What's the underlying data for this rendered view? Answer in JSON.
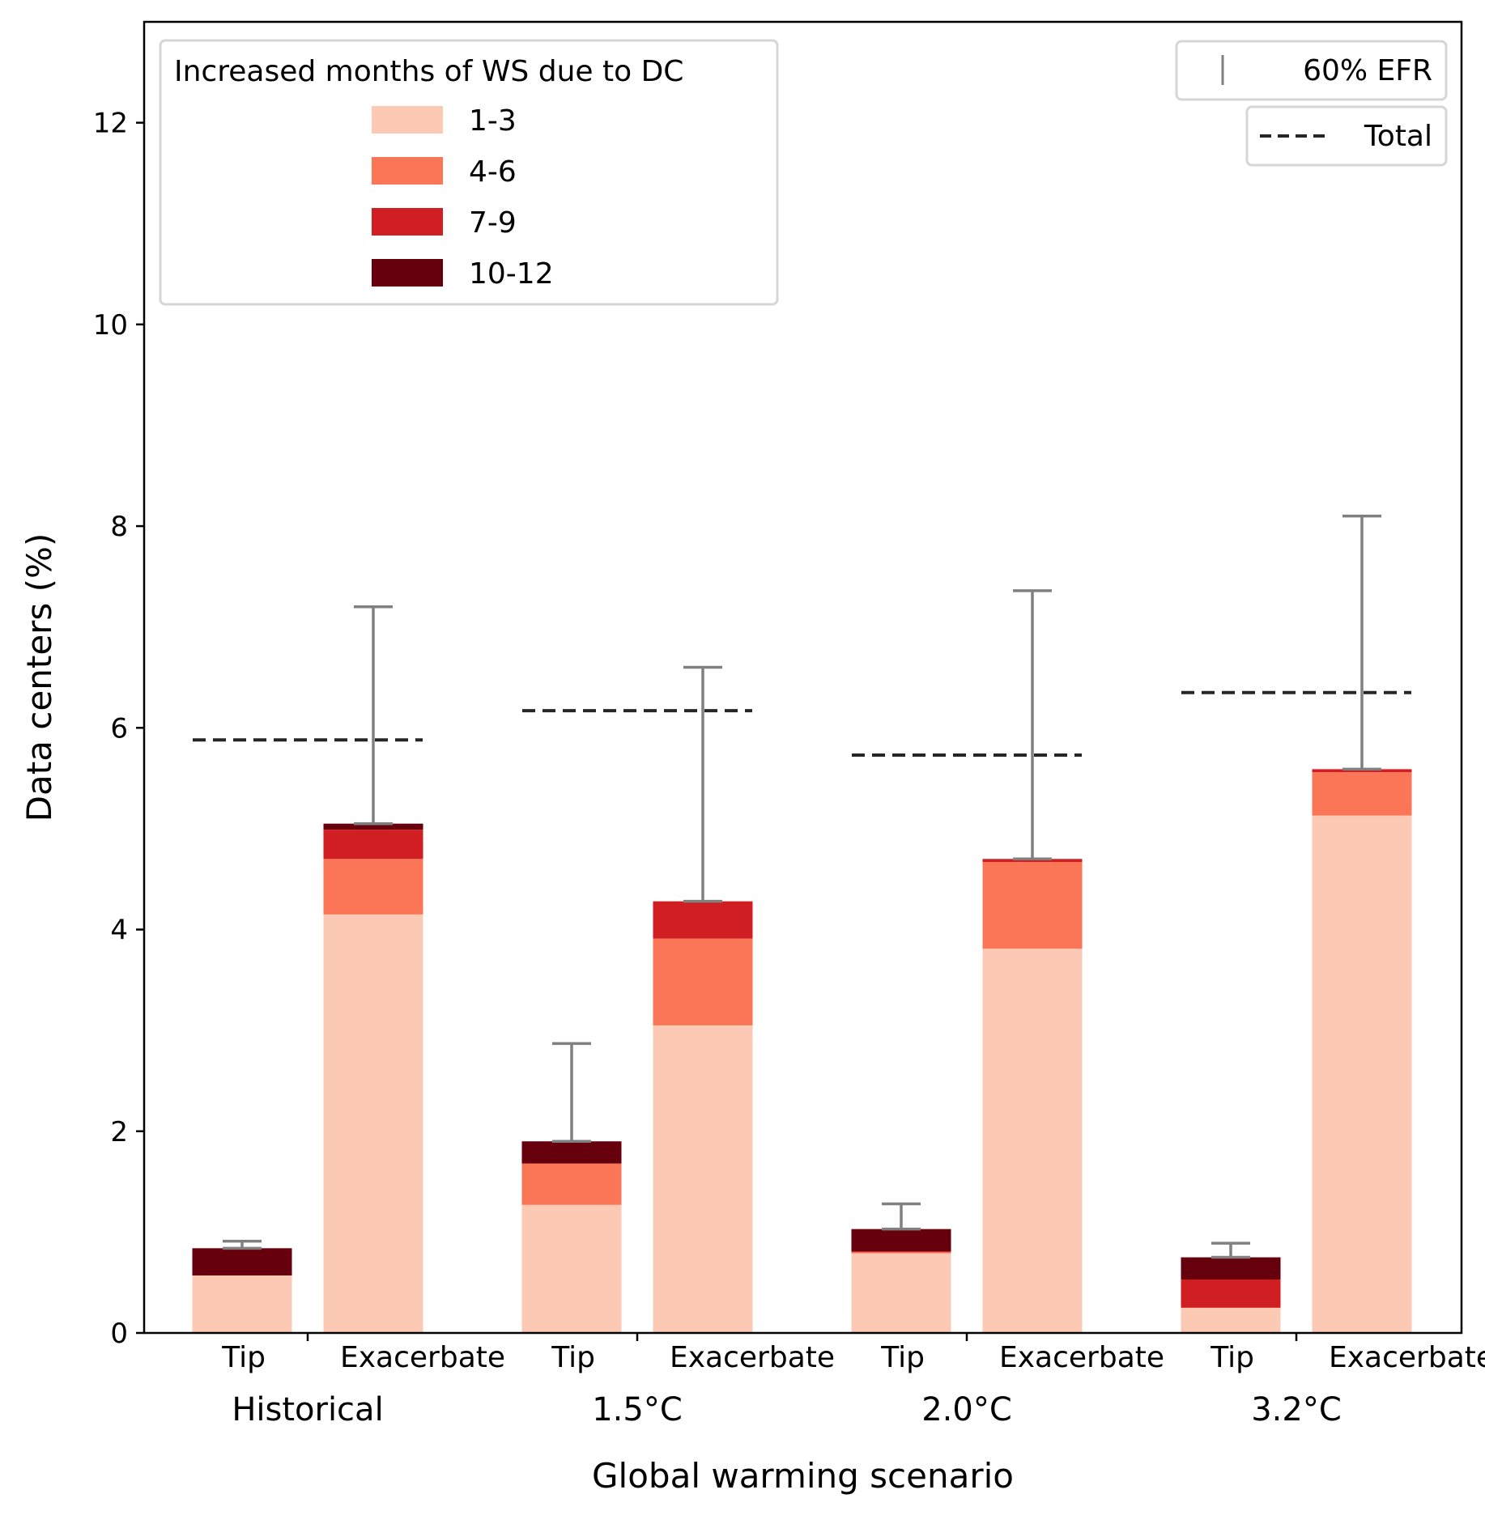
{
  "chart_data": {
    "type": "bar",
    "stacked": true,
    "xlabel": "Global warming scenario",
    "ylabel": "Data centers (%)",
    "ylim": [
      0,
      13
    ],
    "yticks": [
      0,
      2,
      4,
      6,
      8,
      10,
      12
    ],
    "grid": false,
    "bar_kinds": [
      "Tip",
      "Exacerbate"
    ],
    "groups": [
      {
        "label": "Historical",
        "total": 5.88,
        "bars": [
          {
            "kind": "Tip",
            "segments": [
              0.57,
              0.0,
              0.0,
              0.27
            ],
            "efr_high": 0.91
          },
          {
            "kind": "Exacerbate",
            "segments": [
              4.15,
              0.55,
              0.29,
              0.06
            ],
            "efr_high": 7.2
          }
        ]
      },
      {
        "label": "1.5°C",
        "total": 6.17,
        "bars": [
          {
            "kind": "Tip",
            "segments": [
              1.27,
              0.41,
              0.0,
              0.22
            ],
            "efr_high": 2.87
          },
          {
            "kind": "Exacerbate",
            "segments": [
              3.05,
              0.86,
              0.37,
              0.0
            ],
            "efr_high": 6.6
          }
        ]
      },
      {
        "label": "2.0°C",
        "total": 5.73,
        "bars": [
          {
            "kind": "Tip",
            "segments": [
              0.79,
              0.01,
              0.01,
              0.22
            ],
            "efr_high": 1.28
          },
          {
            "kind": "Exacerbate",
            "segments": [
              3.81,
              0.86,
              0.03,
              0.0
            ],
            "efr_high": 7.36
          }
        ]
      },
      {
        "label": "3.2°C",
        "total": 6.35,
        "bars": [
          {
            "kind": "Tip",
            "segments": [
              0.25,
              0.0,
              0.28,
              0.22
            ],
            "efr_high": 0.89
          },
          {
            "kind": "Exacerbate",
            "segments": [
              5.13,
              0.43,
              0.03,
              0.0
            ],
            "efr_high": 8.1
          }
        ]
      }
    ],
    "categories": [
      "1-3",
      "4-6",
      "7-9",
      "10-12"
    ],
    "colors": [
      "#fcc9b4",
      "#fb7656",
      "#d11e22",
      "#67000d"
    ],
    "total_color": "#262626",
    "efr_color": "#808080",
    "legend": {
      "title": "Increased months of WS due to DC",
      "placement": "top-left",
      "efr_label": "60% EFR",
      "efr_placement": "top-right",
      "total_label": "Total",
      "total_placement": "top-right"
    }
  }
}
